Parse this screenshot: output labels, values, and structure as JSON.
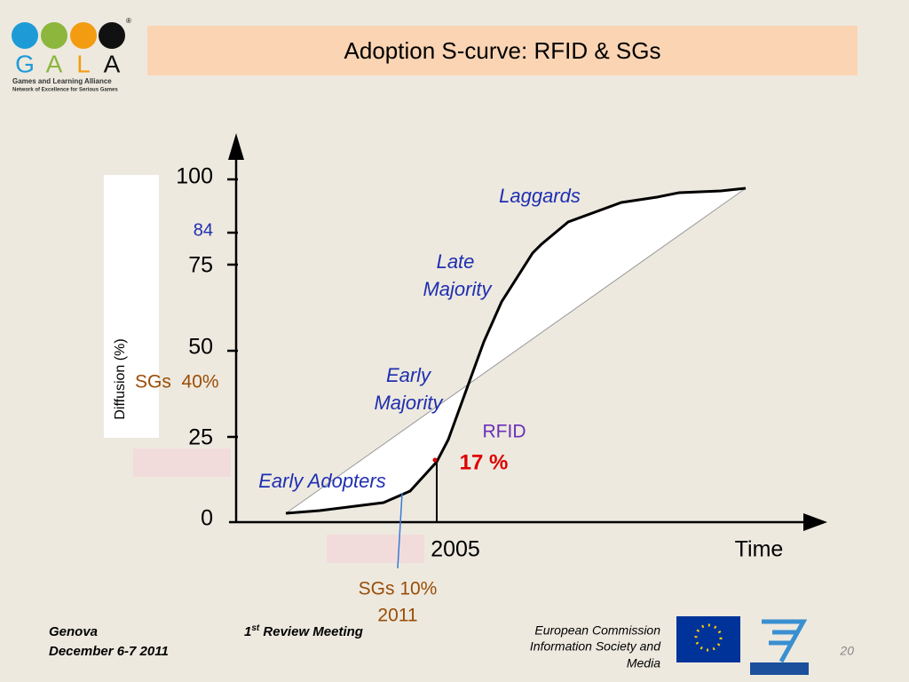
{
  "logo": {
    "letters": [
      "G",
      "A",
      "L",
      "A"
    ],
    "registered": "®",
    "line1": "Games and Learning Alliance",
    "line2": "Network of Excellence for Serious Games"
  },
  "header": {
    "title": "Adoption S-curve: RFID & SGs"
  },
  "figure": {
    "y_label": "Diffusion (%)",
    "y_ticks": [
      100,
      75,
      50,
      25,
      0
    ],
    "highlight_tick": 84,
    "x_tick": "2005",
    "x_label": "Time",
    "phases": {
      "laggards": "Laggards",
      "late": [
        "Late",
        "Majority"
      ],
      "early_majority": [
        "Early",
        "Majority"
      ],
      "early_adopters": "Early Adopters"
    },
    "rfid": "RFID",
    "rfid_value": "17 %",
    "sgs_now": "SGs  40%",
    "sgs_then": [
      "SGs 10%",
      "2011"
    ]
  },
  "footer": {
    "place": "Genova",
    "date": "December 6-7 2011",
    "meeting": {
      "number": "1",
      "suffix": "st",
      "text": " Review Meeting"
    },
    "org": [
      "European Commission",
      "Information Society and",
      "Media"
    ],
    "page": "20"
  }
}
